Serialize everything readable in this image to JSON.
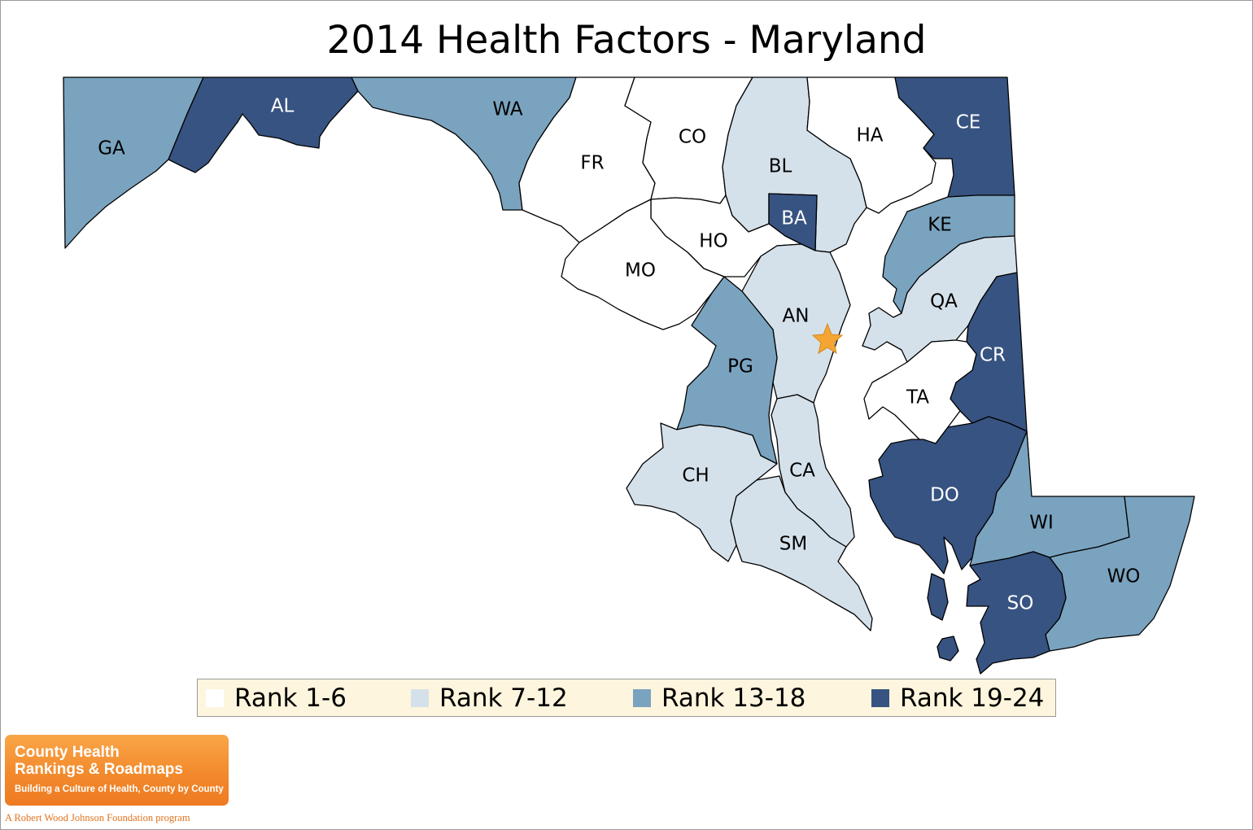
{
  "title": "2014 Health Factors - Maryland",
  "legend": [
    {
      "label": "Rank 1-6",
      "color": "#ffffff"
    },
    {
      "label": "Rank 7-12",
      "color": "#d5e1ea"
    },
    {
      "label": "Rank 13-18",
      "color": "#7aa3bf"
    },
    {
      "label": "Rank 19-24",
      "color": "#375381"
    }
  ],
  "counties": [
    {
      "code": "GA",
      "rank_group": "13-18"
    },
    {
      "code": "AL",
      "rank_group": "19-24"
    },
    {
      "code": "WA",
      "rank_group": "13-18"
    },
    {
      "code": "FR",
      "rank_group": "1-6"
    },
    {
      "code": "CO",
      "rank_group": "1-6"
    },
    {
      "code": "BL",
      "rank_group": "7-12"
    },
    {
      "code": "HA",
      "rank_group": "1-6"
    },
    {
      "code": "CE",
      "rank_group": "19-24"
    },
    {
      "code": "BA",
      "rank_group": "19-24"
    },
    {
      "code": "HO",
      "rank_group": "1-6"
    },
    {
      "code": "KE",
      "rank_group": "13-18"
    },
    {
      "code": "MO",
      "rank_group": "1-6"
    },
    {
      "code": "AN",
      "rank_group": "7-12"
    },
    {
      "code": "QA",
      "rank_group": "7-12"
    },
    {
      "code": "PG",
      "rank_group": "13-18"
    },
    {
      "code": "CR",
      "rank_group": "19-24"
    },
    {
      "code": "TA",
      "rank_group": "1-6"
    },
    {
      "code": "CH",
      "rank_group": "7-12"
    },
    {
      "code": "CA",
      "rank_group": "7-12"
    },
    {
      "code": "DO",
      "rank_group": "19-24"
    },
    {
      "code": "WI",
      "rank_group": "13-18"
    },
    {
      "code": "SM",
      "rank_group": "7-12"
    },
    {
      "code": "WO",
      "rank_group": "13-18"
    },
    {
      "code": "SO",
      "rank_group": "19-24"
    }
  ],
  "capital_marker": {
    "icon": "star-icon",
    "color": "#f5a632"
  },
  "logo": {
    "line1": "County Health",
    "line2": "Rankings & Roadmaps",
    "tagline": "Building a Culture of Health, County by County",
    "foundation": "A Robert Wood Johnson Foundation program"
  }
}
